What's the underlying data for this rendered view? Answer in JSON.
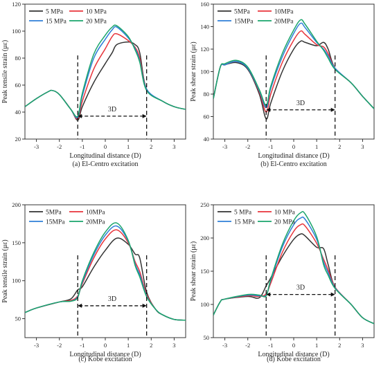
{
  "chart_data": [
    {
      "type": "line",
      "caption": "(a) El-Centro excitation",
      "xlabel": "Longitudinal distance (D)",
      "ylabel": "Peak tensile strain (με)",
      "xlim": [
        -3.5,
        3.5
      ],
      "ylim": [
        20,
        120
      ],
      "xticks": [
        -3,
        -2,
        -1,
        0,
        1,
        2,
        3
      ],
      "yticks": [
        20,
        40,
        60,
        80,
        100,
        120
      ],
      "legend_position": "top-left",
      "annotation": {
        "text": "3D",
        "x_start": -1.2,
        "x_end": 1.8,
        "y": 37
      },
      "dashed_lines_x": [
        -1.2,
        1.8
      ],
      "x": [
        -3.5,
        -3.0,
        -2.5,
        -2.3,
        -2.0,
        -1.5,
        -1.2,
        -1.0,
        -0.5,
        0.0,
        0.3,
        0.5,
        1.0,
        1.3,
        1.5,
        1.8,
        2.5,
        3.0,
        3.5
      ],
      "series": [
        {
          "name": "5 MPa",
          "color": "#333333",
          "values": [
            44,
            50,
            55,
            56,
            53,
            42,
            34,
            44,
            62,
            76,
            84,
            90,
            92,
            90,
            84,
            57,
            48,
            44,
            42
          ]
        },
        {
          "name": "10 MPa",
          "color": "#e8333a",
          "values": [
            44,
            50,
            55,
            56,
            53,
            42,
            35,
            48,
            72,
            87,
            96,
            98,
            93,
            88,
            80,
            57,
            48,
            44,
            42
          ]
        },
        {
          "name": "15 MPa",
          "color": "#2f7fd8",
          "values": [
            44,
            50,
            55,
            56,
            53,
            42,
            36,
            52,
            80,
            94,
            101,
            103,
            95,
            87,
            78,
            57,
            48,
            44,
            42
          ]
        },
        {
          "name": "20 MPa",
          "color": "#1aa56b",
          "values": [
            44,
            50,
            55,
            56,
            53,
            42,
            37,
            54,
            83,
            97,
            103,
            104,
            96,
            86,
            77,
            56,
            48,
            44,
            42
          ]
        }
      ]
    },
    {
      "type": "line",
      "caption": "(b) El-Centro excitation",
      "xlabel": "Longitudinal distance (D)",
      "ylabel": "Peak shear strain (με)",
      "xlim": [
        -3.5,
        3.5
      ],
      "ylim": [
        40,
        160
      ],
      "xticks": [
        -3,
        -2,
        -1,
        0,
        1,
        2,
        3
      ],
      "yticks": [
        40,
        60,
        80,
        100,
        120,
        140,
        160
      ],
      "legend_position": "top-left",
      "annotation": {
        "text": "3D",
        "x_start": -1.2,
        "x_end": 1.8,
        "y": 66
      },
      "dashed_lines_x": [
        -1.2,
        1.8
      ],
      "x": [
        -3.5,
        -3.2,
        -3.0,
        -2.5,
        -2.0,
        -1.5,
        -1.2,
        -1.0,
        -0.5,
        0.0,
        0.3,
        0.5,
        1.0,
        1.3,
        1.5,
        1.8,
        2.5,
        3.0,
        3.5
      ],
      "series": [
        {
          "name": "5MPa",
          "color": "#333333",
          "values": [
            76,
            104,
            106,
            108,
            102,
            80,
            58,
            72,
            100,
            120,
            127,
            126,
            123,
            126,
            120,
            103,
            90,
            78,
            67
          ]
        },
        {
          "name": "10MPa",
          "color": "#e8333a",
          "values": [
            76,
            104,
            106,
            109,
            103,
            82,
            64,
            80,
            108,
            128,
            136,
            133,
            124,
            122,
            116,
            103,
            90,
            78,
            67
          ]
        },
        {
          "name": "15MPa",
          "color": "#2f7fd8",
          "values": [
            76,
            104,
            106,
            109,
            103,
            83,
            68,
            85,
            113,
            134,
            143,
            139,
            126,
            120,
            114,
            103,
            90,
            78,
            67
          ]
        },
        {
          "name": "20MPa",
          "color": "#1aa56b",
          "values": [
            76,
            104,
            107,
            110,
            104,
            84,
            70,
            87,
            116,
            137,
            146,
            142,
            127,
            119,
            112,
            102,
            90,
            78,
            67
          ]
        }
      ]
    },
    {
      "type": "line",
      "caption": "(c) Kobe excitation",
      "xlabel": "Longitudinal distance (D)",
      "ylabel": "Peak tensile strain (με)",
      "xlim": [
        -3.5,
        3.5
      ],
      "ylim": [
        25,
        200
      ],
      "xticks": [
        -3,
        -2,
        -1,
        0,
        1,
        2,
        3
      ],
      "yticks": [
        50,
        100,
        150,
        200
      ],
      "legend_position": "top-left",
      "annotation": {
        "text": "3D",
        "x_start": -1.2,
        "x_end": 1.8,
        "y": 67
      },
      "dashed_lines_x": [
        -1.2,
        1.8
      ],
      "x": [
        -3.5,
        -3.0,
        -2.0,
        -1.5,
        -1.2,
        -1.0,
        -0.5,
        0.0,
        0.5,
        1.0,
        1.3,
        1.5,
        1.8,
        2.2,
        2.5,
        3.0,
        3.5
      ],
      "series": [
        {
          "name": "5MPa",
          "color": "#333333",
          "values": [
            58,
            64,
            72,
            76,
            88,
            92,
            118,
            140,
            156,
            148,
            135,
            130,
            85,
            62,
            55,
            49,
            48
          ]
        },
        {
          "name": "10MPa",
          "color": "#e8333a",
          "values": [
            58,
            64,
            72,
            74,
            80,
            96,
            130,
            155,
            167,
            150,
            125,
            112,
            82,
            62,
            55,
            49,
            48
          ]
        },
        {
          "name": "15MPa",
          "color": "#2f7fd8",
          "values": [
            58,
            64,
            72,
            73,
            79,
            98,
            134,
            160,
            172,
            152,
            122,
            108,
            80,
            62,
            55,
            49,
            48
          ]
        },
        {
          "name": "20MPa",
          "color": "#1aa56b",
          "values": [
            58,
            64,
            72,
            73,
            78,
            100,
            137,
            164,
            176,
            153,
            120,
            105,
            79,
            62,
            55,
            49,
            48
          ]
        }
      ]
    },
    {
      "type": "line",
      "caption": "(d) Kobe excitation",
      "xlabel": "Longitudinal distance (D)",
      "ylabel": "Peak shear strain (με)",
      "xlim": [
        -3.5,
        3.5
      ],
      "ylim": [
        50,
        250
      ],
      "xticks": [
        -3,
        -2,
        -1,
        0,
        1,
        2,
        3
      ],
      "yticks": [
        50,
        100,
        150,
        200,
        250
      ],
      "legend_position": "top-left",
      "annotation": {
        "text": "3D",
        "x_start": -1.2,
        "x_end": 1.8,
        "y": 115
      },
      "dashed_lines_x": [
        -1.2,
        1.8
      ],
      "x": [
        -3.5,
        -3.2,
        -3.0,
        -2.0,
        -1.5,
        -1.2,
        -1.0,
        -0.5,
        0.0,
        0.3,
        0.5,
        1.0,
        1.3,
        1.5,
        1.8,
        2.5,
        3.0,
        3.5
      ],
      "series": [
        {
          "name": "5 MPa",
          "color": "#333333",
          "values": [
            84,
            104,
            108,
            112,
            110,
            128,
            140,
            172,
            198,
            206,
            203,
            186,
            184,
            160,
            126,
            100,
            80,
            71
          ]
        },
        {
          "name": "10 MPa",
          "color": "#e8333a",
          "values": [
            84,
            104,
            108,
            113,
            112,
            116,
            132,
            178,
            210,
            220,
            218,
            192,
            168,
            152,
            126,
            100,
            80,
            71
          ]
        },
        {
          "name": "15 MPa",
          "color": "#2f7fd8",
          "values": [
            84,
            104,
            108,
            114,
            113,
            114,
            136,
            186,
            220,
            230,
            228,
            198,
            164,
            148,
            125,
            100,
            80,
            71
          ]
        },
        {
          "name": "20 MPa",
          "color": "#1aa56b",
          "values": [
            84,
            104,
            108,
            115,
            114,
            113,
            138,
            190,
            226,
            238,
            236,
            202,
            160,
            144,
            124,
            100,
            80,
            71
          ]
        }
      ]
    }
  ]
}
